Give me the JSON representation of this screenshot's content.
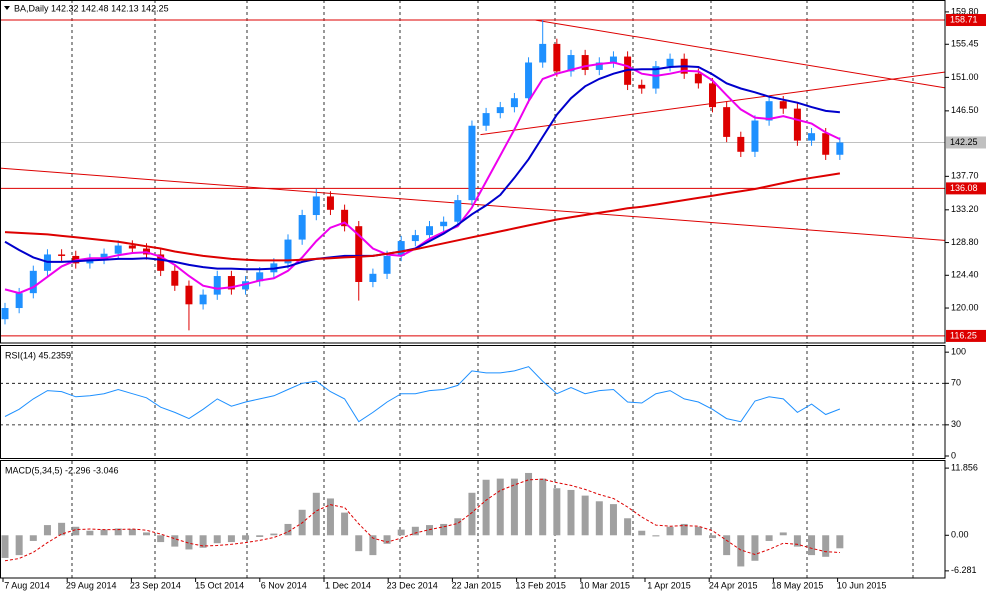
{
  "chart_data": [
    {
      "type": "candlestick",
      "title": "BA,Daily  142.32 142.48 142.13 142.25",
      "up_color": "#1e90ff",
      "down_color": "#dd0000",
      "open": [
        118.5,
        120.0,
        122.0,
        125.0,
        127.2,
        127.0,
        126.0,
        126.6,
        127.3,
        128.4,
        128.0,
        127.2,
        125.0,
        123.0,
        120.5,
        121.8,
        124.3,
        122.5,
        123.6,
        124.8,
        126.0,
        129.2,
        132.5,
        135.0,
        133.2,
        131.0,
        123.5,
        124.6,
        127.0,
        129.0,
        129.8,
        131.0,
        131.6,
        134.5,
        144.5,
        146.2,
        147.0,
        148.2,
        153.0,
        155.5,
        151.8,
        154.0,
        152.0,
        153.0,
        153.8,
        150.0,
        149.5,
        152.5,
        153.5,
        151.5,
        150.2,
        147.0,
        143.0,
        141.0,
        145.2,
        147.8,
        146.8,
        142.5,
        143.5,
        140.6
      ],
      "high": [
        120.7,
        122.7,
        125.7,
        127.9,
        127.9,
        127.7,
        127.3,
        128.0,
        129.1,
        129.1,
        128.7,
        127.9,
        125.7,
        123.7,
        122.5,
        125.0,
        125.0,
        124.3,
        125.5,
        126.7,
        129.9,
        133.2,
        136.0,
        135.7,
        133.9,
        131.7,
        125.3,
        127.7,
        129.7,
        130.5,
        131.7,
        132.3,
        135.2,
        145.2,
        146.9,
        147.7,
        148.9,
        153.7,
        158.71,
        156.2,
        154.7,
        154.7,
        153.7,
        154.5,
        154.5,
        150.7,
        153.2,
        154.2,
        154.2,
        152.2,
        150.9,
        147.7,
        143.7,
        145.9,
        148.5,
        148.5,
        147.5,
        144.2,
        144.2,
        142.95
      ],
      "low": [
        117.8,
        119.3,
        121.3,
        124.3,
        126.3,
        125.3,
        125.3,
        125.9,
        126.6,
        127.3,
        126.5,
        124.3,
        122.3,
        117.0,
        119.8,
        121.1,
        121.8,
        121.8,
        122.9,
        124.1,
        125.3,
        128.5,
        131.8,
        132.5,
        130.3,
        121.0,
        122.8,
        123.9,
        126.3,
        128.3,
        129.1,
        130.3,
        130.9,
        133.8,
        143.8,
        145.5,
        146.3,
        147.5,
        152.3,
        151.1,
        151.1,
        151.3,
        151.3,
        152.3,
        149.3,
        148.8,
        148.8,
        151.8,
        150.8,
        149.5,
        146.3,
        142.3,
        140.3,
        140.3,
        144.5,
        146.1,
        141.8,
        141.8,
        139.9,
        139.9
      ],
      "close": [
        120.0,
        122.0,
        125.0,
        127.2,
        127.0,
        126.0,
        126.6,
        127.3,
        128.4,
        128.0,
        127.2,
        125.0,
        123.0,
        120.5,
        121.8,
        124.3,
        122.5,
        123.6,
        124.8,
        126.0,
        129.2,
        132.5,
        135.0,
        133.2,
        131.0,
        123.5,
        124.6,
        127.0,
        129.0,
        129.8,
        131.0,
        131.6,
        134.5,
        144.5,
        146.2,
        147.0,
        148.2,
        153.0,
        155.5,
        151.8,
        154.0,
        152.0,
        153.0,
        153.8,
        150.0,
        149.5,
        152.5,
        153.5,
        151.5,
        150.2,
        147.0,
        143.0,
        141.0,
        145.2,
        147.8,
        146.8,
        142.5,
        143.5,
        140.6,
        142.25
      ],
      "lines": [
        {
          "color": "#ee00ee",
          "values": [
            122.5,
            122.0,
            122.8,
            124.2,
            125.6,
            126.4,
            126.7,
            126.7,
            127.1,
            127.4,
            127.5,
            126.9,
            125.8,
            124.3,
            123.0,
            122.6,
            122.8,
            123.2,
            123.7,
            124.0,
            125.0,
            126.8,
            129.0,
            130.8,
            131.5,
            129.8,
            128.0,
            127.2,
            127.0,
            128.0,
            129.3,
            130.2,
            131.0,
            133.5,
            137.0,
            140.5,
            144.0,
            147.8,
            150.8,
            151.5,
            152.0,
            152.5,
            152.8,
            153.0,
            152.5,
            151.5,
            151.2,
            151.5,
            151.9,
            151.8,
            150.6,
            148.6,
            146.7,
            145.6,
            145.4,
            145.8,
            145.3,
            144.8,
            143.6,
            142.7
          ]
        },
        {
          "color": "#0000cc",
          "values": [
            128.9,
            127.8,
            126.8,
            126.2,
            126.2,
            126.3,
            126.4,
            126.5,
            126.6,
            126.6,
            126.7,
            126.5,
            126.2,
            125.8,
            125.5,
            125.3,
            125.3,
            125.2,
            125.2,
            125.3,
            125.6,
            126.2,
            126.6,
            126.8,
            127.0,
            127.0,
            127.0,
            127.3,
            127.6,
            128.0,
            129.0,
            130.0,
            131.2,
            132.6,
            133.8,
            135.2,
            137.5,
            140.0,
            143.0,
            146.0,
            148.2,
            149.8,
            150.8,
            151.5,
            152.0,
            152.1,
            152.1,
            152.4,
            152.5,
            152.4,
            151.4,
            150.2,
            149.5,
            149.0,
            148.4,
            148.0,
            147.6,
            147.0,
            146.5,
            146.3
          ]
        },
        {
          "color": "#dd0000",
          "values": [
            130.2,
            130.1,
            130.0,
            129.9,
            129.7,
            129.5,
            129.3,
            129.1,
            128.9,
            128.6,
            128.3,
            128.0,
            127.6,
            127.3,
            127.0,
            126.8,
            126.6,
            126.5,
            126.4,
            126.4,
            126.4,
            126.5,
            126.6,
            126.7,
            126.8,
            126.9,
            127.0,
            127.3,
            127.6,
            127.9,
            128.3,
            128.7,
            129.1,
            129.5,
            129.9,
            130.3,
            130.7,
            131.1,
            131.5,
            131.9,
            132.2,
            132.5,
            132.8,
            133.1,
            133.4,
            133.6,
            133.9,
            134.2,
            134.5,
            134.8,
            135.1,
            135.4,
            135.7,
            136.0,
            136.4,
            136.8,
            137.2,
            137.5,
            137.8,
            138.1
          ]
        }
      ],
      "hlines": [
        {
          "value": 158.71,
          "color": "#dd0000"
        },
        {
          "value": 142.25,
          "color": "#c0c0c0"
        },
        {
          "value": 136.08,
          "color": "#dd0000"
        },
        {
          "value": 116.25,
          "color": "#dd0000"
        }
      ],
      "trendlines": [
        {
          "color": "#dd0000",
          "x": [
            37.5,
            66.4
          ],
          "y": [
            158.7,
            149.6
          ]
        },
        {
          "color": "#dd0000",
          "x": [
            33.6,
            66.4
          ],
          "y": [
            143.3,
            151.7
          ]
        },
        {
          "color": "#dd0000",
          "x": [
            -0.35,
            66.4
          ],
          "y": [
            138.8,
            129.1
          ]
        }
      ],
      "ylim": [
        115.3,
        161.4
      ],
      "yticks": [
        {
          "value": 159.8,
          "label": "159.80"
        },
        155.45,
        {
          "value": 151.0,
          "label": "151.00"
        },
        {
          "value": 146.5,
          "label": "146.50"
        },
        {
          "value": 137.7,
          "label": "137.70"
        },
        {
          "value": 133.2,
          "label": "133.20"
        },
        {
          "value": 128.8,
          "label": "128.80"
        },
        {
          "value": 124.4,
          "label": "124.40"
        },
        {
          "value": 120.0,
          "label": "120.00"
        }
      ],
      "xlabels": [
        "7 Aug 2014",
        "29 Aug 2014",
        "23 Sep 2014",
        "15 Oct 2014",
        "6 Nov 2014",
        "1 Dec 2014",
        "23 Dec 2014",
        "22 Jan 2015",
        "13 Feb 2015",
        "10 Mar 2015",
        "1 Apr 2015",
        "24 Apr 2015",
        "18 May 2015",
        "10 Jun 2015"
      ]
    },
    {
      "type": "line",
      "title": "RSI(14) 45.2359",
      "color": "#1e90ff",
      "values": [
        38,
        45,
        55,
        63,
        62,
        57,
        58,
        60,
        64,
        60,
        56,
        47,
        42,
        36,
        45,
        55,
        48,
        52,
        55,
        58,
        64,
        70,
        72,
        62,
        55,
        33,
        42,
        52,
        60,
        60,
        63,
        64,
        68,
        82,
        80,
        80,
        82,
        86,
        72,
        60,
        66,
        60,
        63,
        64,
        52,
        51,
        60,
        63,
        55,
        52,
        45,
        36,
        33,
        53,
        57,
        55,
        42,
        50,
        40,
        45.2359
      ],
      "levels": [
        70,
        30
      ],
      "ylim": [
        -2.9,
        106.9
      ],
      "yticks": [
        100,
        70,
        30,
        0
      ]
    },
    {
      "type": "macd",
      "title": "MACD(5,34,5) -2.296 -3.046",
      "color": "#a0a0a0",
      "signal_color": "#dd0000",
      "values": [
        -4,
        -3.5,
        -1,
        1.8,
        2.2,
        1.5,
        0.8,
        1,
        1.2,
        1.1,
        0.5,
        -1.2,
        -2,
        -2.5,
        -2.2,
        -1.4,
        -1.2,
        -0.8,
        -0.3,
        0.3,
        2,
        4.5,
        7.5,
        6.5,
        4,
        -2.8,
        -3.5,
        -1.5,
        1,
        1.5,
        1.8,
        2,
        3,
        7.5,
        9.8,
        10,
        10,
        11,
        10,
        8.3,
        8,
        7,
        6,
        5.5,
        3,
        0.8,
        -0.2,
        1.5,
        2,
        1.5,
        -0.5,
        -3.5,
        -5.5,
        -4.5,
        -1,
        0.5,
        -2,
        -3.5,
        -3.8,
        -2.296
      ],
      "signal": [
        -4.5,
        -4.1,
        -3.0,
        -1.3,
        0.2,
        1.0,
        1.1,
        1.0,
        1.0,
        1.1,
        0.9,
        0.2,
        -0.6,
        -1.4,
        -1.9,
        -1.8,
        -1.6,
        -1.3,
        -0.9,
        -0.4,
        0.6,
        2.2,
        4.3,
        5.4,
        4.9,
        2.0,
        -0.5,
        -1.2,
        -0.5,
        0.4,
        1.0,
        1.5,
        2.1,
        4.0,
        6.2,
        7.9,
        8.9,
        9.8,
        9.9,
        9.3,
        8.8,
        8.1,
        7.2,
        6.5,
        5.0,
        3.2,
        1.8,
        1.6,
        1.7,
        1.6,
        0.8,
        -0.9,
        -2.6,
        -3.4,
        -2.5,
        -1.4,
        -1.6,
        -2.3,
        -2.9,
        -3.046
      ],
      "ylim": [
        -7.54,
        13.11
      ],
      "yticks": [
        11.856,
        {
          "value": 0,
          "label": "0.00"
        },
        -6.281
      ]
    }
  ]
}
